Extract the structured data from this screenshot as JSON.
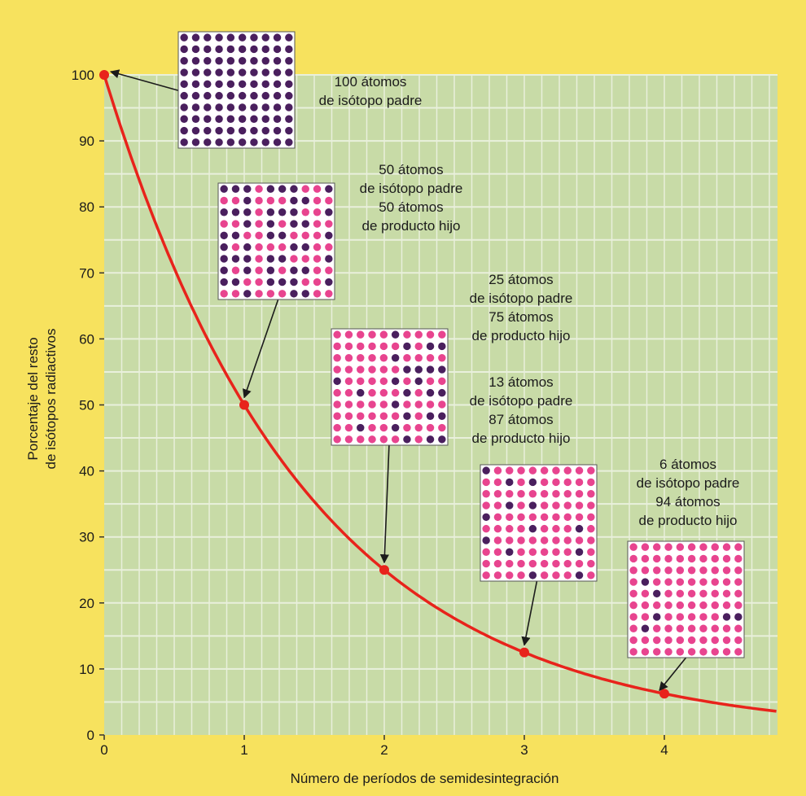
{
  "chart_data": {
    "type": "line",
    "title": "",
    "xlabel": "Número de períodos de semidesintegración",
    "ylabel_lines": [
      "Porcentaje del resto",
      "de isótopos radiactivos"
    ],
    "xlim": [
      0,
      4.8
    ],
    "ylim": [
      0,
      100
    ],
    "x_ticks": [
      0,
      1,
      2,
      3,
      4
    ],
    "y_ticks": [
      0,
      10,
      20,
      30,
      40,
      50,
      60,
      70,
      80,
      90,
      100
    ],
    "grid": true,
    "series": [
      {
        "x": [
          0,
          1,
          2,
          3,
          4
        ],
        "y": [
          100,
          50,
          25,
          12.5,
          6.25
        ],
        "curve_end": {
          "x": 4.8,
          "y": 3.6
        }
      }
    ],
    "annotations": [
      {
        "lines": [
          "100 átomos",
          "de isótopo padre"
        ],
        "parent_atoms": 100,
        "daughter_atoms": 0,
        "points_to": {
          "x": 0,
          "y": 100
        }
      },
      {
        "lines": [
          "50 átomos",
          "de isótopo padre",
          "50 átomos",
          "de producto hijo"
        ],
        "parent_atoms": 50,
        "daughter_atoms": 50,
        "points_to": {
          "x": 1,
          "y": 50
        }
      },
      {
        "lines": [
          "25 átomos",
          "de isótopo padre",
          "75 átomos",
          "de producto hijo"
        ],
        "parent_atoms": 25,
        "daughter_atoms": 75,
        "points_to": {
          "x": 2,
          "y": 25
        }
      },
      {
        "lines": [
          "13 átomos",
          "de isótopo padre",
          "87 átomos",
          "de producto hijo"
        ],
        "parent_atoms": 13,
        "daughter_atoms": 87,
        "points_to": {
          "x": 3,
          "y": 12.5
        }
      },
      {
        "lines": [
          "6 átomos",
          "de isótopo padre",
          "94 átomos",
          "de producto hijo"
        ],
        "parent_atoms": 6,
        "daughter_atoms": 94,
        "points_to": {
          "x": 4,
          "y": 6.25
        }
      }
    ],
    "colors": {
      "background": "#f7e25e",
      "plot_area": "#c8dba7",
      "grid": "#e9f0dc",
      "curve": "#e8231b",
      "parent_atom": "#4a1f5e",
      "daughter_atom": "#e8448f",
      "text": "#1b1b1b"
    }
  }
}
